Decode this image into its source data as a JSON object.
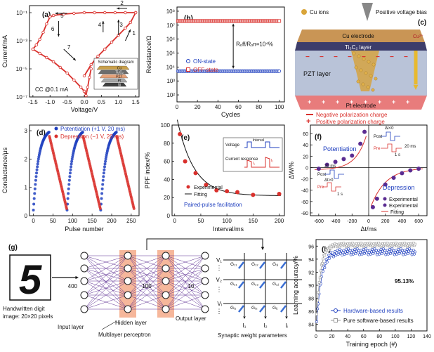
{
  "colors": {
    "red": "#d9302c",
    "blue": "#1f3fbf",
    "orange": "#f4a582",
    "gray": "#999999",
    "purple": "#5b2c91",
    "black": "#111111",
    "grid": "#dddddd"
  },
  "chart_data": [
    {
      "id": "a",
      "panel": "(a)",
      "type": "line",
      "xlabel": "Voltage/V",
      "ylabel": "Current/mA",
      "xlim": [
        -1.6,
        1.6
      ],
      "ylim_log10": [
        -7,
        -0.5
      ],
      "xticks": [
        "-1.5",
        "-1.0",
        "-0.5",
        "0.0",
        "0.5",
        "1.0",
        "1.5"
      ],
      "xtick_values": [
        -1.5,
        -1.0,
        -0.5,
        0.0,
        0.5,
        1.0,
        1.5
      ],
      "yticks": [
        "10⁻¹",
        "10⁻³",
        "10⁻⁵",
        "10⁻⁷"
      ],
      "ytick_exponents": [
        -1,
        -3,
        -5,
        -7
      ],
      "arrow_labels": [
        "1",
        "2",
        "3",
        "4",
        "5",
        "6",
        "7"
      ],
      "annotation": "CC @0.1 mA",
      "inset_title": "Schematic diagram",
      "inset_layers": [
        "Cu",
        "Ti₃C₂",
        "PZT",
        "Pt",
        "Si"
      ],
      "series": [
        {
          "name": "set-branch",
          "x": [
            0.0,
            0.2,
            0.4,
            0.6,
            0.8,
            1.0,
            1.2,
            1.35,
            1.5
          ],
          "y_log10": [
            -5.5,
            -4.7,
            -4.1,
            -3.6,
            -3.1,
            -2.6,
            -2.1,
            -1.7,
            -1.0
          ]
        },
        {
          "name": "lrs-upper",
          "x": [
            1.5,
            1.2,
            0.9,
            0.6,
            0.3,
            0.0,
            -0.3,
            -0.6,
            -0.9,
            -1.0
          ],
          "y_log10": [
            -1.0,
            -1.0,
            -1.0,
            -1.0,
            -1.0,
            -1.0,
            -1.05,
            -1.1,
            -1.2,
            -1.3
          ]
        },
        {
          "name": "reset-branch",
          "x": [
            -1.0,
            -1.1,
            -1.2,
            -1.3,
            -1.4,
            -1.5
          ],
          "y_log10": [
            -1.3,
            -1.8,
            -2.4,
            -2.9,
            -3.3,
            -3.6
          ]
        },
        {
          "name": "hrs-return",
          "x": [
            -1.5,
            -1.3,
            -1.1,
            -0.9,
            -0.7,
            -0.5,
            -0.3,
            -0.1,
            0.0
          ],
          "y_log10": [
            -3.6,
            -3.9,
            -4.2,
            -4.5,
            -4.9,
            -5.3,
            -5.8,
            -6.3,
            -6.6
          ]
        },
        {
          "name": "hrs-dip",
          "x": [
            0.0,
            0.05,
            0.1,
            0.15,
            0.2
          ],
          "y_log10": [
            -6.6,
            -6.9,
            -6.3,
            -5.6,
            -5.0
          ]
        }
      ]
    },
    {
      "id": "b",
      "panel": "(b)",
      "type": "scatter",
      "xlabel": "Cycles",
      "ylabel": "Resistance/Ω",
      "xlim": [
        0,
        105
      ],
      "ylim_log10": [
        1.5,
        8.3
      ],
      "xticks": [
        "0",
        "20",
        "40",
        "60",
        "80",
        "100"
      ],
      "xtick_values": [
        0,
        20,
        40,
        60,
        80,
        100
      ],
      "yticks": [
        "10⁸",
        "10⁷",
        "10⁶",
        "10⁵",
        "10⁴",
        "10³",
        "10²"
      ],
      "ytick_exponents": [
        8,
        7,
        6,
        5,
        4,
        3,
        2
      ],
      "ratio_label": "Rₒff/Rₒn=10⁴%",
      "series": [
        {
          "name": "ON-state",
          "marker": "circle-blue",
          "cycles": [
            1,
            100
          ],
          "log10_value": 3.7
        },
        {
          "name": "OFF-state",
          "marker": "square-red",
          "cycles": [
            1,
            100
          ],
          "log10_value": 7.3
        }
      ]
    },
    {
      "id": "d",
      "panel": "(d)",
      "type": "scatter",
      "xlabel": "Pulse number",
      "ylabel": "Conductance/μs",
      "xlim": [
        -10,
        270
      ],
      "ylim": [
        0,
        3.2
      ],
      "xticks": [
        "0",
        "50",
        "100",
        "150",
        "200",
        "250"
      ],
      "xtick_values": [
        0,
        50,
        100,
        150,
        200,
        250
      ],
      "yticks": [
        "0",
        "1",
        "2",
        "3"
      ],
      "ytick_values": [
        0,
        1,
        2,
        3
      ],
      "series": [
        {
          "name": "Potentiation (+1 V, 20 ms)",
          "color": "blue",
          "segments": [
            [
              0,
              40
            ],
            [
              86,
              126
            ],
            [
              172,
              212
            ]
          ],
          "start": 0.2,
          "end": 2.95
        },
        {
          "name": "Depression (−1 V, 20 ms)",
          "color": "red",
          "segments": [
            [
              41,
              85
            ],
            [
              127,
              171
            ],
            [
              213,
              257
            ]
          ],
          "start": 2.8,
          "end": 0.25
        }
      ]
    },
    {
      "id": "e",
      "panel": "(e)",
      "type": "scatter",
      "xlabel": "Interval/ms",
      "ylabel": "PPF index/%",
      "xlim": [
        -5,
        210
      ],
      "ylim": [
        0,
        100
      ],
      "xticks": [
        "0",
        "50",
        "100",
        "150",
        "200"
      ],
      "xtick_values": [
        0,
        50,
        100,
        150,
        200
      ],
      "yticks": [
        "0",
        "20",
        "40",
        "60",
        "80",
        "100"
      ],
      "ytick_values": [
        0,
        20,
        40,
        60,
        80,
        100
      ],
      "series": [
        {
          "name": "Experimental",
          "x": [
            10,
            20,
            40,
            60,
            80,
            100,
            120,
            150,
            200
          ],
          "y": [
            90,
            60,
            47,
            34,
            28,
            27,
            26,
            23,
            24
          ]
        },
        {
          "name": "Fitting",
          "fit": "exp",
          "y0": 22,
          "A": 98,
          "tau": 32
        }
      ],
      "caption": "Paired-pulse facilitation",
      "inset_labels": [
        "Voltage",
        "Interval",
        "Current response",
        "I₁",
        "I₂"
      ]
    },
    {
      "id": "f",
      "panel": "(f)",
      "type": "scatter",
      "xlabel": "Δt/ms",
      "ylabel": "ΔW/%",
      "xlim": [
        -700,
        700
      ],
      "ylim": [
        -85,
        75
      ],
      "xticks": [
        "-600",
        "-400",
        "-200",
        "0",
        "200",
        "400",
        "600"
      ],
      "xtick_values": [
        -600,
        -400,
        -200,
        0,
        200,
        400,
        600
      ],
      "yticks": [
        "60",
        "40",
        "20",
        "0",
        "-20",
        "-40",
        "-60",
        "-80"
      ],
      "ytick_values": [
        60,
        40,
        20,
        0,
        -20,
        -40,
        -60,
        -80
      ],
      "labels": [
        "Potentiation",
        "Depression",
        "Post",
        "Pre",
        "Δt<0",
        "Δt>0",
        "20 ms",
        "1 s"
      ],
      "series": [
        {
          "name": "Experimental (potentiation)",
          "x": [
            -600,
            -500,
            -400,
            -300,
            -200,
            -100,
            -50
          ],
          "y": [
            -2,
            5,
            10,
            15,
            21,
            42,
            63
          ]
        },
        {
          "name": "Experimental (depression)",
          "x": [
            50,
            100,
            200,
            300,
            400,
            500,
            600
          ],
          "y": [
            -70,
            -55,
            -30,
            -18,
            -10,
            -5,
            -2
          ]
        },
        {
          "name": "Fitting",
          "fit": "stdp"
        }
      ],
      "legend": [
        "Experimental",
        "Experimental",
        "Fitting"
      ]
    },
    {
      "id": "h",
      "panel": "(h)",
      "type": "line",
      "xlabel": "Training epoch (#)",
      "ylabel": "Learning accuracy/%",
      "xlim": [
        0,
        140
      ],
      "ylim": [
        83,
        97
      ],
      "xticks": [
        "0",
        "20",
        "40",
        "60",
        "80",
        "100",
        "120",
        "140"
      ],
      "xtick_values": [
        0,
        20,
        40,
        60,
        80,
        100,
        120,
        140
      ],
      "yticks": [
        "84",
        "86",
        "88",
        "90",
        "92",
        "94",
        "96"
      ],
      "ytick_values": [
        84,
        86,
        88,
        90,
        92,
        94,
        96
      ],
      "annotation": "95.13%",
      "series": [
        {
          "name": "Hardware-based results",
          "marker": "circle-blue",
          "final": 95.13,
          "start": 84.5,
          "tau": 6,
          "amp": 91.0
        },
        {
          "name": "Pure software-based results",
          "marker": "square-gray",
          "final": 96.2,
          "start": 85.5,
          "tau": 5,
          "amp": 92.0
        }
      ]
    }
  ],
  "panel_c": {
    "label": "(c)",
    "legend_ions": "Cu ions",
    "bias": "Positive voltage bias",
    "cu_electrode": "Cu electrode",
    "ion": "Cu²⁺",
    "tic_layer": "Ti₃C₂ layer",
    "pzt": "PZT layer",
    "pt": "Pt electrode",
    "neg": "Negative polarization charge",
    "pos": "Positive polarization charge"
  },
  "panel_g": {
    "label": "(g)",
    "digit": "5",
    "digit_caption_1": "Handwritten digit",
    "digit_caption_2": "image: 20×20 pixels",
    "n_input": "400",
    "n_hidden": "100",
    "n_output": "10",
    "input_layer": "Input layer",
    "hidden_layer": "Hidden layer",
    "output_layer": "Output layer",
    "mlp": "Multilayer perceptron",
    "sw_caption": "Synaptic weight parameters",
    "v_labels": [
      "V₁",
      "V₂",
      "Vᵢ"
    ],
    "i_labels": [
      "I₁",
      "I₂",
      "Iⱼ"
    ],
    "g_labels": [
      "G₁₁",
      "G₁₂",
      "G₁ⱼ",
      "G₂₁",
      "G₂₂",
      "G₂ⱼ",
      "Gᵢ₁",
      "Gᵢ₂",
      "Gᵢⱼ"
    ]
  }
}
